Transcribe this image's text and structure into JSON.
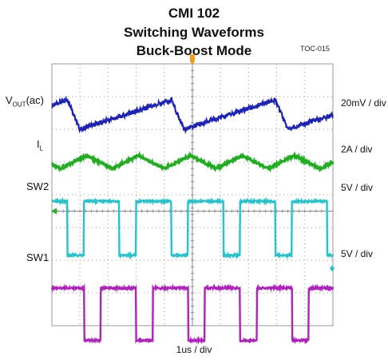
{
  "figure": {
    "title_line1": "CMI 102",
    "title_line2": "Switching Waveforms",
    "title_line3": "Buck-Boost Mode",
    "figure_id": "TOC-015",
    "timebase": "1us / div"
  },
  "chart_data": {
    "type": "line",
    "title": "CMI 102 Switching Waveforms Buck-Boost Mode",
    "xlabel": "1us / div",
    "x_divisions": 10,
    "y_divisions": 8,
    "grid": true,
    "series": [
      {
        "name": "V_OUT(ac)",
        "scale": "20mV / div",
        "color": "#1d22b8",
        "waveform": "ripple sawtooth",
        "period_div": 3.7,
        "amplitude_div": 0.45,
        "center_div": 6.45
      },
      {
        "name": "I_L",
        "scale": "2A / div",
        "color": "#1fae1f",
        "waveform": "triangular ripple",
        "period_div": 1.85,
        "amplitude_div": 0.2,
        "center_div": 5.0
      },
      {
        "name": "SW2",
        "scale": "5V / div",
        "color": "#25c4cc",
        "waveform": "square",
        "period_div": 1.85,
        "high_div": 3.8,
        "low_div": 2.15
      },
      {
        "name": "SW1",
        "scale": "5V / div",
        "color": "#b320c0",
        "waveform": "square",
        "period_div": 1.85,
        "high_div": 1.15,
        "low_div": -0.45
      }
    ]
  },
  "labels": {
    "vout_main": "V",
    "vout_sub": "OUT",
    "vout_tail": "(ac)",
    "il_main": "I",
    "il_sub": "L",
    "sw2": "SW2",
    "sw1": "SW1"
  }
}
